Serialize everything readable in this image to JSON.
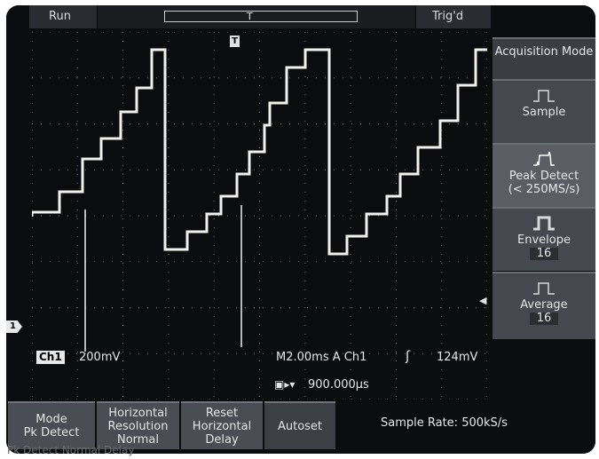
{
  "status": {
    "run": "Run",
    "trig": "Trig'd"
  },
  "record_bar": {
    "trigger_marker": "T"
  },
  "right_menu": {
    "title": "Acquisition Mode",
    "items": [
      {
        "label": "Sample",
        "value": ""
      },
      {
        "label": "Peak Detect",
        "sub": "(< 250MS/s)"
      },
      {
        "label": "Envelope",
        "value": "16"
      },
      {
        "label": "Average",
        "value": "16"
      }
    ]
  },
  "readouts": {
    "channel": "Ch1",
    "volts_div": "200mV",
    "horizontal": "M2.00ms A Ch1",
    "trigger_slope_icon": "rising-edge-icon",
    "trigger_level": "124mV",
    "trigger_delay": "900.000µs",
    "channel_marker": "1",
    "trigger_T": "T"
  },
  "bottom_menu": {
    "mode": {
      "line1": "Mode",
      "line2": "Pk Detect"
    },
    "hres": {
      "line1": "Horizontal",
      "line2": "Resolution",
      "line3": "Normal"
    },
    "reset": {
      "line1": "Reset",
      "line2": "Horizontal",
      "line3": "Delay"
    },
    "autoset": "Autoset",
    "sample_rate": "Sample Rate: 500kS/s",
    "ghost_text": "Pk Detect     Normal     Delay"
  },
  "colors": {
    "trace": "#f2f2ec",
    "background": "#0b0c0e",
    "menu": "#45484e"
  }
}
